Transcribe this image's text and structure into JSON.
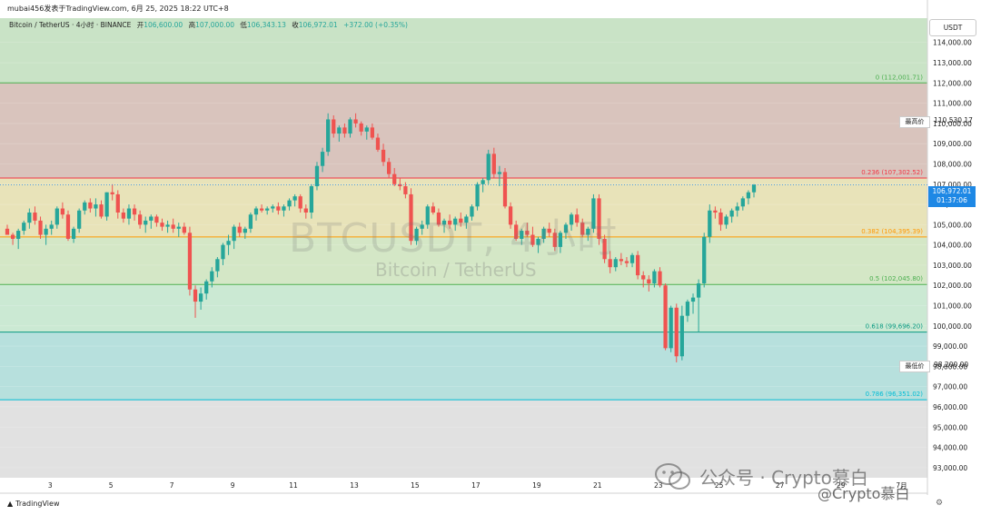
{
  "header": {
    "author_line": "mubai456发表于TradingView.com,  6月 25, 2025 18:22 UTC+8"
  },
  "legend": {
    "symbol": "Bitcoin / TetherUS · 4小时 · BINANCE",
    "open_label": "开",
    "open": "106,600.00",
    "high_label": "高",
    "high": "107,000.00",
    "low_label": "低",
    "low": "106,343.13",
    "close_label": "收",
    "close": "106,972.01",
    "change": "+372.00 (+0.35%)"
  },
  "price_axis": {
    "currency": "USDT",
    "current_price": "106,972.01",
    "countdown": "01:37:06",
    "high_tag": "最高价",
    "high_tag_value": "110,530.17",
    "low_tag": "最低价",
    "low_tag_value": "98,200.00"
  },
  "watermark": {
    "title": "BTCUSDT, 4小时",
    "subtitle": "Bitcoin / TetherUS"
  },
  "branding": {
    "tradingview": "TradingView",
    "wechat": "公众号 · Crypto慕白",
    "wechat2": "@Crypto慕白"
  },
  "colors": {
    "up": "#26a69a",
    "down": "#ef5350",
    "current_price_bg": "#1e88e5"
  },
  "chart_data": {
    "type": "candlestick",
    "symbol": "BTCUSDT",
    "timeframe": "4小时",
    "exchange": "BINANCE",
    "ylim": [
      92500,
      115200
    ],
    "y_ticks": [
      93000,
      94000,
      95000,
      96000,
      97000,
      98000,
      99000,
      100000,
      101000,
      102000,
      103000,
      104000,
      105000,
      106000,
      107000,
      108000,
      109000,
      110000,
      111000,
      112000,
      113000,
      114000
    ],
    "y_tick_labels": [
      "93,000.00",
      "94,000.00",
      "95,000.00",
      "96,000.00",
      "97,000.00",
      "98,000.00",
      "99,000.00",
      "100,000.00",
      "101,000.00",
      "102,000.00",
      "103,000.00",
      "104,000.00",
      "105,000.00",
      "106,000.00",
      "107,000.00",
      "108,000.00",
      "109,000.00",
      "110,000.00",
      "111,000.00",
      "112,000.00",
      "113,000.00",
      "114,000.00"
    ],
    "x_tick_labels": [
      {
        "label": "3",
        "day": 3
      },
      {
        "label": "5",
        "day": 5
      },
      {
        "label": "7",
        "day": 7
      },
      {
        "label": "9",
        "day": 9
      },
      {
        "label": "11",
        "day": 11
      },
      {
        "label": "13",
        "day": 13
      },
      {
        "label": "15",
        "day": 15
      },
      {
        "label": "17",
        "day": 17
      },
      {
        "label": "19",
        "day": 19
      },
      {
        "label": "21",
        "day": 21
      },
      {
        "label": "23",
        "day": 23
      },
      {
        "label": "25",
        "day": 25
      },
      {
        "label": "27",
        "day": 27
      },
      {
        "label": "29",
        "day": 29
      },
      {
        "label": "7月",
        "day": 31
      }
    ],
    "x_range_days": [
      1.35,
      31.85
    ],
    "fib_levels": [
      {
        "ratio": "0",
        "price": 112001.71,
        "label": "0 (112,001.71)",
        "color": "#4caf50"
      },
      {
        "ratio": "0.236",
        "price": 107302.52,
        "label": "0.236 (107,302.52)",
        "color": "#f23645"
      },
      {
        "ratio": "0.382",
        "price": 104395.39,
        "label": "0.382 (104,395.39)",
        "color": "#ff9800"
      },
      {
        "ratio": "0.5",
        "price": 102045.8,
        "label": "0.5 (102,045.80)",
        "color": "#4caf50"
      },
      {
        "ratio": "0.618",
        "price": 99696.2,
        "label": "0.618 (99,696.20)",
        "color": "#089981"
      },
      {
        "ratio": "0.786",
        "price": 96351.02,
        "label": "0.786 (96,351.02)",
        "color": "#00bcd4"
      }
    ],
    "zone_colors": [
      "#c9e3c6",
      "#d9c4bd",
      "#e8e3b9",
      "#d4e7c6",
      "#cbe9d3",
      "#b7e0dd",
      "#e1e1e1"
    ],
    "current_price": 106972.01,
    "candles": [
      [
        104800,
        105000,
        104500,
        104500
      ],
      [
        104500,
        104600,
        104000,
        104300
      ],
      [
        104300,
        104800,
        103800,
        104700
      ],
      [
        104700,
        105200,
        104500,
        105100
      ],
      [
        105100,
        105800,
        104800,
        105600
      ],
      [
        105600,
        105900,
        105000,
        105200
      ],
      [
        105200,
        105400,
        104300,
        104500
      ],
      [
        104500,
        105000,
        104000,
        104800
      ],
      [
        104800,
        105200,
        104500,
        105000
      ],
      [
        105000,
        105900,
        104800,
        105800
      ],
      [
        105800,
        106100,
        105300,
        105500
      ],
      [
        105500,
        105700,
        104200,
        104300
      ],
      [
        104300,
        104900,
        104100,
        104800
      ],
      [
        104800,
        105800,
        104600,
        105700
      ],
      [
        105700,
        106200,
        105500,
        106100
      ],
      [
        106100,
        106300,
        105600,
        105800
      ],
      [
        105800,
        106300,
        105400,
        106000
      ],
      [
        106000,
        106200,
        105300,
        105400
      ],
      [
        105400,
        106600,
        105200,
        106600
      ],
      [
        106600,
        107000,
        106200,
        106500
      ],
      [
        106500,
        106700,
        105300,
        105600
      ],
      [
        105600,
        105800,
        105100,
        105300
      ],
      [
        105300,
        106000,
        105000,
        105800
      ],
      [
        105800,
        106000,
        105200,
        105500
      ],
      [
        105500,
        105700,
        104800,
        105000
      ],
      [
        105000,
        105400,
        104600,
        105200
      ],
      [
        105200,
        105500,
        104800,
        105400
      ],
      [
        105400,
        105500,
        104900,
        105100
      ],
      [
        105100,
        105300,
        104700,
        104900
      ],
      [
        104900,
        105200,
        104600,
        105000
      ],
      [
        105000,
        105300,
        104600,
        104800
      ],
      [
        104800,
        105100,
        104400,
        104900
      ],
      [
        104900,
        105100,
        104500,
        104600
      ],
      [
        104600,
        104900,
        101500,
        101800
      ],
      [
        101800,
        102000,
        100400,
        101200
      ],
      [
        101200,
        101900,
        100800,
        101600
      ],
      [
        101600,
        102300,
        101300,
        102200
      ],
      [
        102200,
        102900,
        101900,
        102700
      ],
      [
        102700,
        103400,
        102400,
        103300
      ],
      [
        103300,
        104100,
        103000,
        104000
      ],
      [
        104000,
        104500,
        103500,
        104200
      ],
      [
        104200,
        105000,
        103800,
        104900
      ],
      [
        104900,
        105100,
        104400,
        104600
      ],
      [
        104600,
        104900,
        104300,
        104800
      ],
      [
        104800,
        105600,
        104600,
        105500
      ],
      [
        105500,
        105900,
        105200,
        105800
      ],
      [
        105800,
        106000,
        105600,
        105700
      ],
      [
        105700,
        105900,
        105500,
        105800
      ],
      [
        105800,
        106000,
        105600,
        105900
      ],
      [
        105900,
        106100,
        105500,
        105700
      ],
      [
        105700,
        106000,
        105400,
        105900
      ],
      [
        105900,
        106300,
        105700,
        106200
      ],
      [
        106200,
        106500,
        105900,
        106400
      ],
      [
        106400,
        106500,
        105600,
        105800
      ],
      [
        105800,
        106000,
        105300,
        105600
      ],
      [
        105600,
        107000,
        105300,
        106900
      ],
      [
        106900,
        108100,
        106700,
        107900
      ],
      [
        107900,
        108800,
        107600,
        108600
      ],
      [
        108600,
        110500,
        108400,
        110200
      ],
      [
        110200,
        110400,
        109300,
        109500
      ],
      [
        109500,
        109900,
        109100,
        109800
      ],
      [
        109800,
        110000,
        109300,
        109500
      ],
      [
        109500,
        110300,
        109300,
        110200
      ],
      [
        110200,
        110500,
        109800,
        110000
      ],
      [
        110000,
        110100,
        109400,
        109600
      ],
      [
        109600,
        109900,
        109200,
        109800
      ],
      [
        109800,
        110000,
        109200,
        109300
      ],
      [
        109300,
        109500,
        108600,
        108700
      ],
      [
        108700,
        109000,
        107900,
        108100
      ],
      [
        108100,
        108300,
        107300,
        107500
      ],
      [
        107500,
        107800,
        106900,
        107000
      ],
      [
        107000,
        107300,
        106700,
        106900
      ],
      [
        106900,
        107100,
        106300,
        106500
      ],
      [
        106500,
        106800,
        104000,
        104200
      ],
      [
        104200,
        104900,
        104000,
        104800
      ],
      [
        104800,
        105200,
        104500,
        105000
      ],
      [
        105000,
        106000,
        104800,
        105900
      ],
      [
        105900,
        106100,
        105500,
        105600
      ],
      [
        105600,
        105800,
        104900,
        105000
      ],
      [
        105000,
        105300,
        104600,
        105200
      ],
      [
        105200,
        105500,
        104800,
        105000
      ],
      [
        105000,
        105400,
        104700,
        105300
      ],
      [
        105300,
        105600,
        104900,
        105100
      ],
      [
        105100,
        105500,
        104800,
        105400
      ],
      [
        105400,
        106000,
        105200,
        105900
      ],
      [
        105900,
        107100,
        105700,
        107000
      ],
      [
        107000,
        107300,
        106600,
        107200
      ],
      [
        107200,
        108700,
        107000,
        108500
      ],
      [
        108500,
        108800,
        107300,
        107500
      ],
      [
        107500,
        107900,
        106900,
        107600
      ],
      [
        107600,
        107800,
        105800,
        105900
      ],
      [
        105900,
        106100,
        104800,
        105000
      ],
      [
        105000,
        105200,
        104200,
        104300
      ],
      [
        104300,
        104800,
        104000,
        104700
      ],
      [
        104700,
        105100,
        104400,
        104500
      ],
      [
        104500,
        104900,
        103900,
        104000
      ],
      [
        104000,
        104400,
        103600,
        104300
      ],
      [
        104300,
        104900,
        104100,
        104800
      ],
      [
        104800,
        105100,
        104400,
        104600
      ],
      [
        104600,
        104800,
        103700,
        103900
      ],
      [
        103900,
        104700,
        103600,
        104600
      ],
      [
        104600,
        105100,
        104300,
        105000
      ],
      [
        105000,
        105600,
        104700,
        105500
      ],
      [
        105500,
        105800,
        104900,
        105100
      ],
      [
        105100,
        105300,
        104400,
        104500
      ],
      [
        104500,
        104900,
        104200,
        104800
      ],
      [
        104800,
        106500,
        104600,
        106300
      ],
      [
        106300,
        106500,
        104000,
        104300
      ],
      [
        104300,
        104500,
        103100,
        103300
      ],
      [
        103300,
        103700,
        102600,
        102900
      ],
      [
        102900,
        103400,
        102700,
        103300
      ],
      [
        103300,
        103600,
        103000,
        103200
      ],
      [
        103200,
        103400,
        102900,
        103100
      ],
      [
        103100,
        103600,
        102900,
        103500
      ],
      [
        103500,
        103700,
        102300,
        102500
      ],
      [
        102500,
        102700,
        101900,
        102300
      ],
      [
        102300,
        102500,
        101700,
        102100
      ],
      [
        102100,
        102800,
        101900,
        102700
      ],
      [
        102700,
        102900,
        101900,
        102000
      ],
      [
        102000,
        102100,
        98800,
        98900
      ],
      [
        98900,
        101000,
        98700,
        100900
      ],
      [
        100900,
        101100,
        98200,
        98500
      ],
      [
        98500,
        101000,
        98300,
        100500
      ],
      [
        100500,
        101300,
        100200,
        101200
      ],
      [
        101200,
        101600,
        100600,
        101400
      ],
      [
        101400,
        102300,
        99700,
        102100
      ],
      [
        102100,
        104600,
        101900,
        104400
      ],
      [
        104400,
        106000,
        104100,
        105700
      ],
      [
        105700,
        105900,
        105300,
        105600
      ],
      [
        105600,
        105800,
        104700,
        105000
      ],
      [
        105000,
        105500,
        104800,
        105400
      ],
      [
        105400,
        105800,
        105100,
        105700
      ],
      [
        105700,
        106100,
        105400,
        105900
      ],
      [
        105900,
        106400,
        105700,
        106300
      ],
      [
        106300,
        106700,
        106000,
        106600
      ],
      [
        106600,
        107000,
        106343.13,
        106972.01
      ]
    ]
  }
}
